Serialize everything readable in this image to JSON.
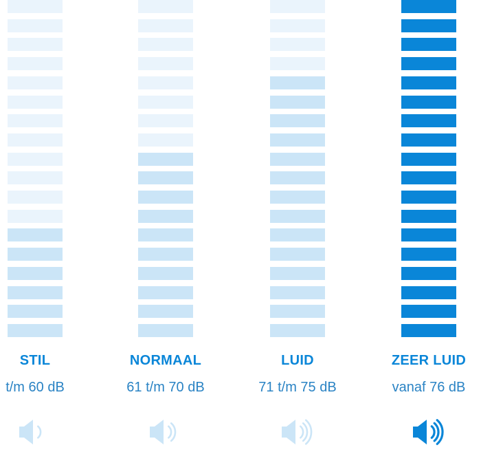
{
  "levels": [
    {
      "label": "STIL",
      "range": "t/m 60 dB",
      "icon": "speaker-low-icon",
      "waves": 1,
      "filled_segments": 6,
      "active": false
    },
    {
      "label": "NORMAAL",
      "range": "61 t/m 70 dB",
      "icon": "speaker-medium-icon",
      "waves": 2,
      "filled_segments": 10,
      "active": false
    },
    {
      "label": "LUID",
      "range": "71 t/m 75 dB",
      "icon": "speaker-loud-icon",
      "waves": 3,
      "filled_segments": 14,
      "active": false
    },
    {
      "label": "ZEER LUID",
      "range": "vanaf 76 dB",
      "icon": "speaker-very-loud-icon",
      "waves": 3,
      "filled_segments": 18,
      "active": true
    }
  ],
  "segments_per_meter": 18,
  "colors": {
    "empty_segment": "#eaf4fc",
    "filled_segment": "#cbe5f7",
    "active_segment": "#0a86d8",
    "icon_inactive": "#cbe5f7",
    "icon_active": "#0a86d8",
    "title": "#0a86d8",
    "range_text": "#2a83c4"
  }
}
